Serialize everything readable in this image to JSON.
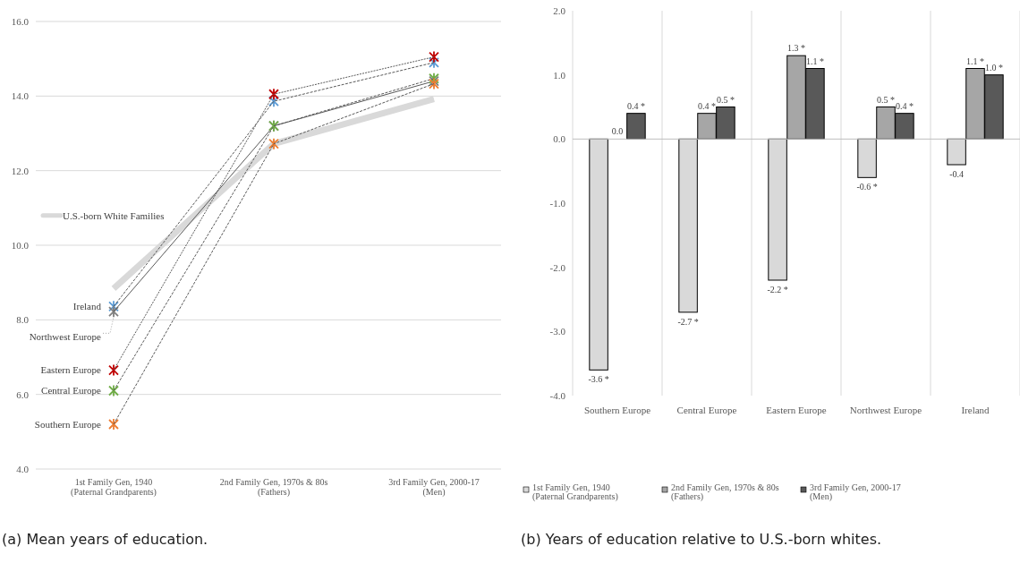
{
  "chart_data": [
    {
      "type": "line",
      "categories": [
        "1st Family Gen, 1940\n(Paternal Grandparents)",
        "2nd Family Gen, 1970s & 80s\n(Fathers)",
        "3rd Family Gen, 2000-17\n(Men)"
      ],
      "series": [
        {
          "name": "U.S.-born White Families",
          "color": "#d9d9d9",
          "values": [
            8.84,
            12.72,
            13.92
          ],
          "marker": "none",
          "line_style": "solid"
        },
        {
          "name": "Ireland",
          "color": "#5b9bd5",
          "values": [
            8.36,
            13.86,
            14.9
          ],
          "line_style": "dashed"
        },
        {
          "name": "Northwest Europe",
          "color": "#7f7f7f",
          "values": [
            8.22,
            13.2,
            14.4
          ],
          "line_style": "solid"
        },
        {
          "name": "Eastern Europe",
          "color": "#c00000",
          "values": [
            6.65,
            14.05,
            15.05
          ],
          "line_style": "dotted"
        },
        {
          "name": "Central Europe",
          "color": "#70ad47",
          "values": [
            6.1,
            13.2,
            14.47
          ],
          "line_style": "dashed"
        },
        {
          "name": "Southern Europe",
          "color": "#ed7d31",
          "values": [
            5.2,
            12.72,
            14.33
          ],
          "line_style": "dashed"
        }
      ],
      "ylim": [
        4,
        16
      ],
      "yticks": [
        {
          "value": 4,
          "label": "4.0"
        },
        {
          "value": 6,
          "label": "6.0"
        },
        {
          "value": 8,
          "label": "8.0"
        },
        {
          "value": 10,
          "label": "10.0"
        },
        {
          "value": 12,
          "label": "12.0"
        },
        {
          "value": 14,
          "label": "14.0"
        },
        {
          "value": 16,
          "label": "16.0"
        }
      ],
      "grid": "y",
      "legend": "left",
      "marker": "cross",
      "annotations": [
        "(a) Mean years of education."
      ]
    },
    {
      "type": "bar",
      "categories": [
        "Southern Europe",
        "Central Europe",
        "Eastern Europe",
        "Northwest Europe",
        "Ireland"
      ],
      "series": [
        {
          "name": "1st Family Gen, 1940\n(Paternal Grandparents)",
          "color": "#d9d9d9",
          "values": [
            -3.6,
            -2.7,
            -2.2,
            -0.6,
            -0.4
          ],
          "value_labels": [
            "-3.6 *",
            "-2.7 *",
            "-2.2 *",
            "-0.6 *",
            "-0.4"
          ]
        },
        {
          "name": "2nd Family Gen, 1970s & 80s\n(Fathers)",
          "color": "#a6a6a6",
          "values": [
            0.0,
            0.4,
            1.3,
            0.5,
            1.1
          ],
          "value_labels": [
            "0.0",
            "0.4 *",
            "1.3 *",
            "0.5 *",
            "1.1 *"
          ]
        },
        {
          "name": "3rd Family Gen, 2000-17\n(Men)",
          "color": "#595959",
          "values": [
            0.4,
            0.5,
            1.1,
            0.4,
            1.0
          ],
          "value_labels": [
            "0.4 *",
            "0.5 *",
            "1.1 *",
            "0.4 *",
            "1.0 *"
          ]
        }
      ],
      "ylim": [
        -4,
        2
      ],
      "yticks": [
        {
          "value": -4,
          "label": "-4.0"
        },
        {
          "value": -3,
          "label": "-3.0"
        },
        {
          "value": -2,
          "label": "-2.0"
        },
        {
          "value": -1,
          "label": "-1.0"
        },
        {
          "value": 0,
          "label": "0.0"
        },
        {
          "value": 1,
          "label": "1.0"
        },
        {
          "value": 2,
          "label": "2.0"
        }
      ],
      "grid": "x",
      "legend": "bottom",
      "annotations": [
        "(b) Years of education relative to U.S.-born whites."
      ]
    }
  ]
}
